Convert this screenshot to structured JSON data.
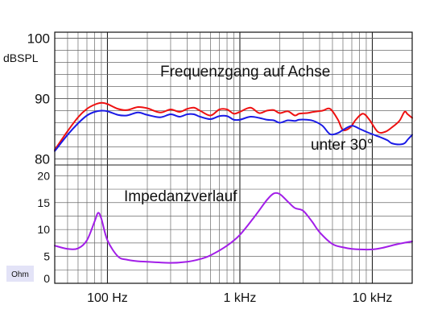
{
  "chart_data": {
    "type": "line",
    "x_scale": "log",
    "x_range_hz": [
      40,
      20000
    ],
    "grid": true,
    "x_tick_labels": [
      {
        "value": 100,
        "label": "100 Hz"
      },
      {
        "value": 1000,
        "label": "1 kHz"
      },
      {
        "value": 10000,
        "label": "10 kHz"
      }
    ],
    "spl_axis": {
      "unit_label": "dBSPL",
      "range": [
        79,
        101
      ],
      "ticks": [
        {
          "value": 100,
          "label": "100"
        },
        {
          "value": 90,
          "label": "90"
        },
        {
          "value": 80,
          "label": "80"
        }
      ]
    },
    "impedance_axis": {
      "unit_label": "Ohm",
      "range": [
        0,
        22
      ],
      "ticks": [
        {
          "value": 20,
          "label": "20"
        },
        {
          "value": 15,
          "label": "15"
        },
        {
          "value": 10,
          "label": "10"
        },
        {
          "value": 5,
          "label": "5"
        },
        {
          "value": 0,
          "label": "0"
        }
      ]
    },
    "annotations": {
      "on_axis": "Frequenzgang auf Achse",
      "off_axis": "unter 30°",
      "impedance": "Impedanzverlauf"
    },
    "colors": {
      "on_axis": "#ee1111",
      "off_axis": "#1a1ae6",
      "impedance": "#a21ee8",
      "unit_box": "#e3e3f7",
      "grid": "#6a6a6a"
    },
    "series": [
      {
        "annotation": "Frequenzgang auf Achse",
        "axis": "spl",
        "points": [
          [
            40,
            81.5
          ],
          [
            50,
            84.6
          ],
          [
            60,
            86.9
          ],
          [
            70,
            88.3
          ],
          [
            80,
            89
          ],
          [
            90,
            89.3
          ],
          [
            100,
            89.1
          ],
          [
            120,
            88.3
          ],
          [
            140,
            88.1
          ],
          [
            170,
            88.6
          ],
          [
            200,
            88.4
          ],
          [
            250,
            87.7
          ],
          [
            300,
            88.2
          ],
          [
            350,
            87.8
          ],
          [
            400,
            88.3
          ],
          [
            450,
            88.5
          ],
          [
            500,
            88
          ],
          [
            600,
            87.2
          ],
          [
            700,
            88.2
          ],
          [
            800,
            88.2
          ],
          [
            900,
            87.5
          ],
          [
            1000,
            87.8
          ],
          [
            1200,
            88.5
          ],
          [
            1400,
            87.6
          ],
          [
            1600,
            88
          ],
          [
            1800,
            88.1
          ],
          [
            2000,
            87.6
          ],
          [
            2300,
            87.9
          ],
          [
            2600,
            87.2
          ],
          [
            2800,
            87.5
          ],
          [
            3200,
            87.6
          ],
          [
            3600,
            87.8
          ],
          [
            4200,
            88
          ],
          [
            4800,
            88.3
          ],
          [
            5500,
            86.5
          ],
          [
            6000,
            84.8
          ],
          [
            6800,
            85.2
          ],
          [
            7500,
            86.5
          ],
          [
            8500,
            87.5
          ],
          [
            9500,
            86.5
          ],
          [
            11000,
            84.5
          ],
          [
            12500,
            84.5
          ],
          [
            14000,
            85.2
          ],
          [
            16000,
            86.3
          ],
          [
            17500,
            87.8
          ],
          [
            18500,
            87.4
          ],
          [
            20000,
            86.8
          ]
        ]
      },
      {
        "annotation": "unter 30°",
        "axis": "spl",
        "points": [
          [
            40,
            81.3
          ],
          [
            50,
            84
          ],
          [
            60,
            85.9
          ],
          [
            70,
            87.2
          ],
          [
            80,
            87.8
          ],
          [
            90,
            88
          ],
          [
            100,
            87.9
          ],
          [
            120,
            87.3
          ],
          [
            140,
            87.2
          ],
          [
            170,
            87.7
          ],
          [
            200,
            87.3
          ],
          [
            250,
            86.9
          ],
          [
            300,
            87.4
          ],
          [
            350,
            87
          ],
          [
            400,
            87.4
          ],
          [
            450,
            87.4
          ],
          [
            500,
            87
          ],
          [
            600,
            86.6
          ],
          [
            700,
            87.1
          ],
          [
            800,
            87.1
          ],
          [
            900,
            86.5
          ],
          [
            1000,
            86.5
          ],
          [
            1200,
            87
          ],
          [
            1400,
            86.8
          ],
          [
            1600,
            86.5
          ],
          [
            1800,
            86.4
          ],
          [
            2000,
            86
          ],
          [
            2300,
            86.4
          ],
          [
            2600,
            86.3
          ],
          [
            2800,
            86.5
          ],
          [
            3200,
            86.5
          ],
          [
            3600,
            86.3
          ],
          [
            4200,
            85.5
          ],
          [
            4800,
            84.1
          ],
          [
            5500,
            84.3
          ],
          [
            6000,
            84.8
          ],
          [
            7000,
            85.5
          ],
          [
            8000,
            85
          ],
          [
            9000,
            84.5
          ],
          [
            10000,
            84.1
          ],
          [
            11500,
            83.6
          ],
          [
            13000,
            83.1
          ],
          [
            14000,
            82.6
          ],
          [
            16000,
            82.4
          ],
          [
            17500,
            82.6
          ],
          [
            18500,
            83.2
          ],
          [
            20000,
            84
          ]
        ]
      },
      {
        "annotation": "Impedanzverlauf",
        "axis": "impedance",
        "points": [
          [
            40,
            7
          ],
          [
            50,
            6.4
          ],
          [
            60,
            6.5
          ],
          [
            70,
            8
          ],
          [
            80,
            11.5
          ],
          [
            85,
            13.1
          ],
          [
            90,
            12
          ],
          [
            100,
            8
          ],
          [
            120,
            5
          ],
          [
            140,
            4.4
          ],
          [
            170,
            4.1
          ],
          [
            200,
            4
          ],
          [
            300,
            3.8
          ],
          [
            400,
            4
          ],
          [
            500,
            4.5
          ],
          [
            600,
            5.2
          ],
          [
            800,
            7
          ],
          [
            1000,
            9
          ],
          [
            1300,
            12.5
          ],
          [
            1600,
            15.5
          ],
          [
            1800,
            16.7
          ],
          [
            2000,
            16.6
          ],
          [
            2300,
            15.2
          ],
          [
            2600,
            14
          ],
          [
            3000,
            13.5
          ],
          [
            3500,
            11.5
          ],
          [
            4000,
            9.5
          ],
          [
            5000,
            7.3
          ],
          [
            6000,
            6.7
          ],
          [
            7000,
            6.4
          ],
          [
            8000,
            6.3
          ],
          [
            10000,
            6.3
          ],
          [
            12000,
            6.6
          ],
          [
            15000,
            7.2
          ],
          [
            20000,
            7.8
          ]
        ]
      }
    ]
  }
}
